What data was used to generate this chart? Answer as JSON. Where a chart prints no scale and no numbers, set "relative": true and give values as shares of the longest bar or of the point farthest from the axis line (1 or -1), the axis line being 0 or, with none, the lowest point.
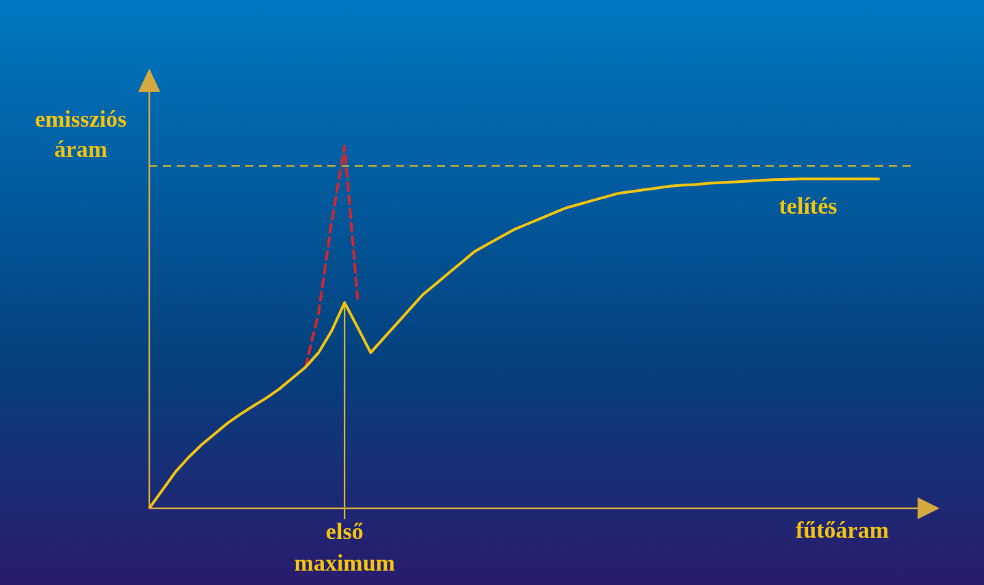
{
  "chart_data": {
    "type": "line",
    "relative": true,
    "xlabel": "fűtőáram",
    "ylabel": "emissziós áram",
    "categories": [
      null,
      null,
      null,
      null,
      null,
      null,
      null,
      null,
      null,
      null,
      null,
      null,
      null,
      null,
      null,
      null,
      null,
      null,
      null,
      null,
      null,
      null,
      null,
      null,
      null,
      null,
      null,
      null,
      null,
      null,
      null,
      null,
      null,
      null,
      null,
      null,
      null,
      null,
      null,
      null,
      null,
      null,
      null,
      null,
      null,
      null,
      null,
      null,
      null,
      null,
      null,
      null,
      null,
      null,
      null,
      null,
      null,
      null,
      null,
      null
    ],
    "series": [
      {
        "color": "#f2c30f",
        "line_style": "solid",
        "values": [
          0,
          0.05,
          0.1,
          0.14,
          0.175,
          0.205,
          0.235,
          0.26,
          0.283,
          0.305,
          0.33,
          0.36,
          0.39,
          0.43,
          0.49,
          0.568,
          0.5,
          0.43,
          0.47,
          0.51,
          0.55,
          0.59,
          0.62,
          0.65,
          0.68,
          0.71,
          0.73,
          0.75,
          0.77,
          0.785,
          0.8,
          0.815,
          0.83,
          0.84,
          0.85,
          0.86,
          0.87,
          0.875,
          0.88,
          0.885,
          0.89,
          0.893,
          0.895,
          0.898,
          0.9,
          0.902,
          0.904,
          0.906,
          0.908,
          0.909,
          0.91,
          0.91,
          0.91,
          0.91,
          0.91,
          0.91,
          0.91,
          null,
          null,
          null
        ]
      },
      {
        "color": "#d3262e",
        "line_style": "dashed",
        "values": [
          null,
          null,
          null,
          null,
          null,
          null,
          null,
          null,
          null,
          null,
          null,
          null,
          0.39,
          0.54,
          0.79,
          1,
          0.58,
          null,
          null,
          null,
          null,
          null,
          null,
          null,
          null,
          null,
          null,
          null,
          null,
          null,
          null,
          null,
          null,
          null,
          null,
          null,
          null,
          null,
          null,
          null,
          null,
          null,
          null,
          null,
          null,
          null,
          null,
          null,
          null,
          null,
          null,
          null,
          null,
          null,
          null,
          null,
          null,
          null,
          null,
          null
        ]
      }
    ],
    "ref_lines": [
      {
        "axis": "y",
        "value": 0.946,
        "color": "#f2c30f",
        "line_style": "dashed"
      }
    ],
    "annotations": [
      "telítés",
      "első maximum"
    ],
    "legend": false,
    "marker": "none"
  }
}
